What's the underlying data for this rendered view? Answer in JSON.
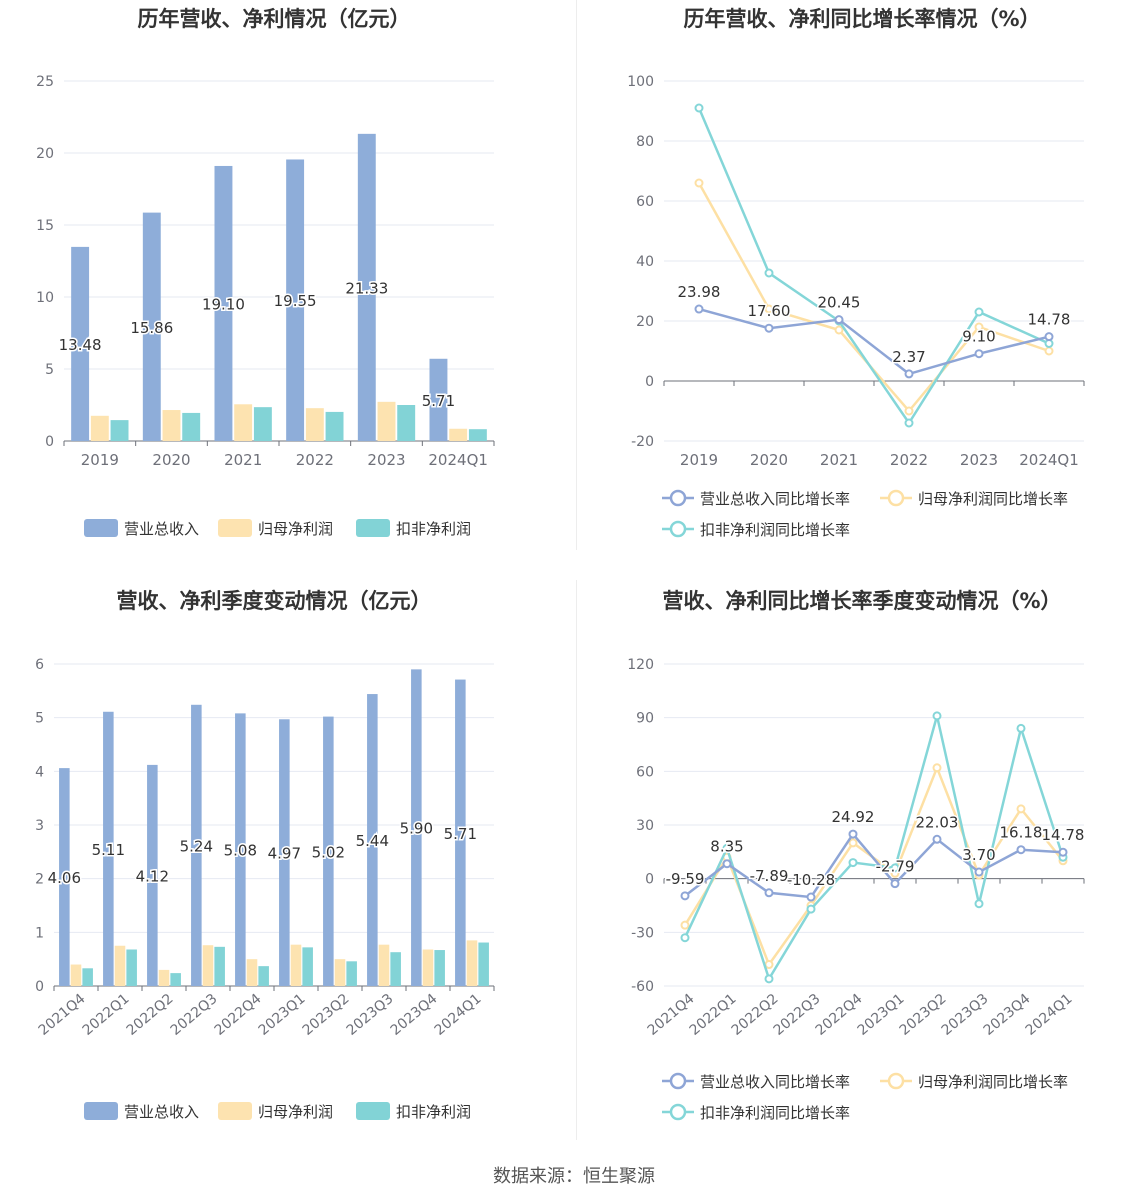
{
  "colors": {
    "revenue": "#8eadd9",
    "parent_profit": "#fde3b0",
    "deducted_profit": "#82d3d6",
    "revenue_line": "#8ea5d6",
    "parent_line": "#fde0a4",
    "deducted_line": "#84d6d8",
    "grid": "#e6e9f2",
    "axis": "#6e7079",
    "tick_text": "#6e7079",
    "title": "#333333",
    "label": "#333333"
  },
  "footer": {
    "source": "数据来源：恒生聚源"
  },
  "chart_data": [
    {
      "type": "bar",
      "title": "历年营收、净利情况（亿元）",
      "categories": [
        "2019",
        "2020",
        "2021",
        "2022",
        "2023",
        "2024Q1"
      ],
      "ylim": [
        0,
        25
      ],
      "yticks": [
        0,
        5,
        10,
        15,
        20,
        25
      ],
      "series": [
        {
          "name": "营业总收入",
          "values": [
            13.48,
            15.86,
            19.1,
            19.55,
            21.33,
            5.71
          ],
          "labels": [
            "13.48",
            "15.86",
            "19.10",
            "19.55",
            "21.33",
            "5.71"
          ]
        },
        {
          "name": "归母净利润",
          "values": [
            1.75,
            2.15,
            2.55,
            2.28,
            2.72,
            0.85
          ]
        },
        {
          "name": "扣非净利润",
          "values": [
            1.45,
            1.95,
            2.35,
            2.02,
            2.5,
            0.82
          ]
        }
      ]
    },
    {
      "type": "line",
      "title": "历年营收、净利同比增长率情况（%）",
      "categories": [
        "2019",
        "2020",
        "2021",
        "2022",
        "2023",
        "2024Q1"
      ],
      "ylim": [
        -20,
        100
      ],
      "yticks": [
        -20,
        0,
        20,
        40,
        60,
        80,
        100
      ],
      "series": [
        {
          "name": "营业总收入同比增长率",
          "values": [
            23.98,
            17.6,
            20.45,
            2.37,
            9.1,
            14.78
          ],
          "labels": [
            "23.98",
            "17.60",
            "20.45",
            "2.37",
            "9.10",
            "14.78"
          ]
        },
        {
          "name": "归母净利润同比增长率",
          "values": [
            66.0,
            24.0,
            17.0,
            -10.0,
            18.0,
            10.0
          ]
        },
        {
          "name": "扣非净利润同比增长率",
          "values": [
            91.0,
            36.0,
            20.0,
            -14.0,
            23.0,
            12.5
          ]
        }
      ]
    },
    {
      "type": "bar",
      "title": "营收、净利季度变动情况（亿元）",
      "categories": [
        "2021Q4",
        "2022Q1",
        "2022Q2",
        "2022Q3",
        "2022Q4",
        "2023Q1",
        "2023Q2",
        "2023Q3",
        "2023Q4",
        "2024Q1"
      ],
      "ylim": [
        0,
        6
      ],
      "yticks": [
        0,
        1,
        2,
        3,
        4,
        5,
        6
      ],
      "series": [
        {
          "name": "营业总收入",
          "values": [
            4.06,
            5.11,
            4.12,
            5.24,
            5.08,
            4.97,
            5.02,
            5.44,
            5.9,
            5.71
          ],
          "labels": [
            "4.06",
            "5.11",
            "4.12",
            "5.24",
            "5.08",
            "4.97",
            "5.02",
            "5.44",
            "5.90",
            "5.71"
          ]
        },
        {
          "name": "归母净利润",
          "values": [
            0.4,
            0.75,
            0.3,
            0.76,
            0.5,
            0.77,
            0.5,
            0.77,
            0.68,
            0.85
          ]
        },
        {
          "name": "扣非净利润",
          "values": [
            0.33,
            0.68,
            0.24,
            0.73,
            0.37,
            0.72,
            0.46,
            0.63,
            0.67,
            0.81
          ]
        }
      ]
    },
    {
      "type": "line",
      "title": "营收、净利同比增长率季度变动情况（%）",
      "categories": [
        "2021Q4",
        "2022Q1",
        "2022Q2",
        "2022Q3",
        "2022Q4",
        "2023Q1",
        "2023Q2",
        "2023Q3",
        "2023Q4",
        "2024Q1"
      ],
      "ylim": [
        -60,
        120
      ],
      "yticks": [
        -60,
        -30,
        0,
        30,
        60,
        90,
        120
      ],
      "series": [
        {
          "name": "营业总收入同比增长率",
          "values": [
            -9.59,
            8.35,
            -7.89,
            -10.28,
            24.92,
            -2.79,
            22.03,
            3.7,
            16.18,
            14.78
          ],
          "labels": [
            "-9.59",
            "8.35",
            "-7.89",
            "-10.28",
            "24.92",
            "-2.79",
            "22.03",
            "3.70",
            "16.18",
            "14.78"
          ]
        },
        {
          "name": "归母净利润同比增长率",
          "values": [
            -26.0,
            12.0,
            -48.0,
            -15.0,
            20.0,
            3.0,
            62.0,
            2.0,
            39.0,
            10.0
          ]
        },
        {
          "name": "扣非净利润同比增长率",
          "values": [
            -33.0,
            17.0,
            -56.0,
            -17.0,
            9.0,
            6.0,
            91.0,
            -14.0,
            84.0,
            12.0
          ]
        }
      ]
    }
  ]
}
